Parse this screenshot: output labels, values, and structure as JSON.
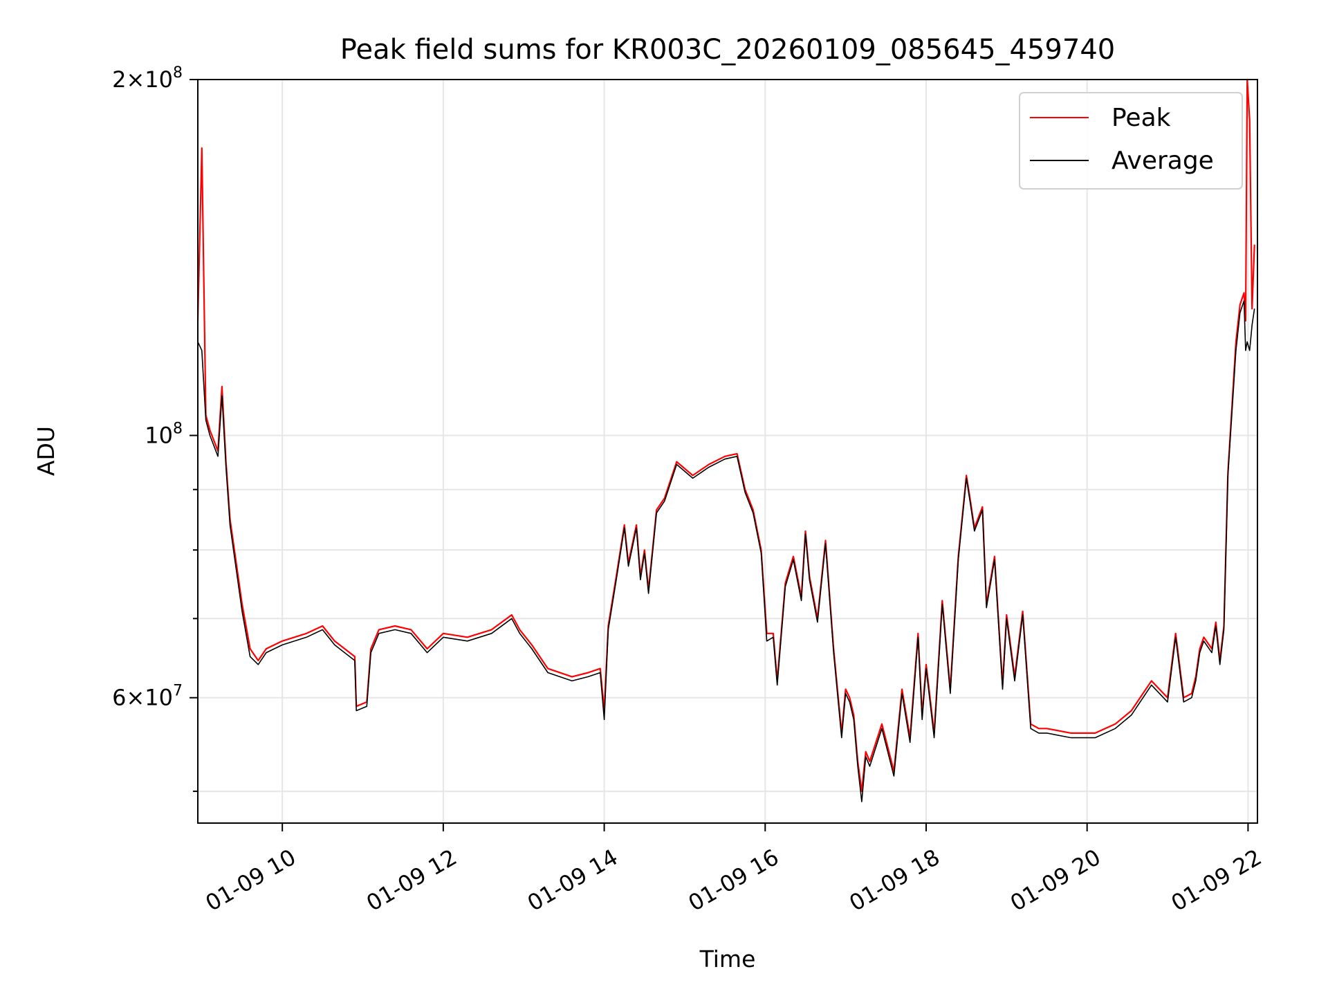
{
  "chart_data": {
    "type": "line",
    "title": "Peak field sums for KR003C_20260109_085645_459740",
    "xlabel": "Time",
    "ylabel": "ADU",
    "yscale": "log",
    "xlim": [
      "01-09 08:57",
      "01-09 22:07"
    ],
    "ylim": [
      47000000,
      200000000
    ],
    "grid": true,
    "legend_position": "top-right",
    "x_ticks": [
      "01-09 10",
      "01-09 12",
      "01-09 14",
      "01-09 16",
      "01-09 18",
      "01-09 20",
      "01-09 22"
    ],
    "x_tick_hours": [
      10,
      12,
      14,
      16,
      18,
      20,
      22
    ],
    "y_major_ticks": [
      {
        "value": 100000000,
        "mant": "",
        "exp": "8",
        "base": "10"
      },
      {
        "value": 60000000,
        "mant": "6",
        "exp": "7",
        "base": "10"
      },
      {
        "value": 200000000,
        "mant": "2",
        "exp": "8",
        "base": "10"
      }
    ],
    "y_minor_ticks": [
      50000000,
      70000000,
      80000000,
      90000000
    ],
    "colors": {
      "peak": "#ff0000",
      "average": "#000000"
    },
    "hours": [
      8.95,
      9.0,
      9.05,
      9.1,
      9.2,
      9.25,
      9.3,
      9.35,
      9.5,
      9.6,
      9.7,
      9.8,
      9.9,
      10.0,
      10.3,
      10.5,
      10.65,
      10.9,
      10.92,
      11.05,
      11.1,
      11.2,
      11.4,
      11.6,
      11.8,
      12.0,
      12.3,
      12.6,
      12.85,
      12.95,
      13.1,
      13.3,
      13.6,
      13.8,
      13.95,
      14.0,
      14.05,
      14.15,
      14.25,
      14.3,
      14.4,
      14.45,
      14.5,
      14.55,
      14.65,
      14.75,
      14.9,
      15.1,
      15.3,
      15.5,
      15.65,
      15.75,
      15.85,
      15.95,
      16.02,
      16.1,
      16.15,
      16.25,
      16.35,
      16.45,
      16.5,
      16.55,
      16.65,
      16.75,
      16.85,
      16.95,
      17.0,
      17.05,
      17.1,
      17.15,
      17.2,
      17.25,
      17.3,
      17.45,
      17.6,
      17.7,
      17.8,
      17.9,
      17.95,
      18.0,
      18.1,
      18.2,
      18.3,
      18.4,
      18.5,
      18.55,
      18.6,
      18.7,
      18.75,
      18.85,
      18.95,
      19.0,
      19.1,
      19.2,
      19.3,
      19.4,
      19.5,
      19.8,
      20.1,
      20.35,
      20.55,
      20.8,
      21.0,
      21.1,
      21.2,
      21.3,
      21.35,
      21.4,
      21.45,
      21.55,
      21.6,
      21.65,
      21.7,
      21.75,
      21.85,
      21.9,
      21.95,
      21.97,
      21.99,
      22.02,
      22.05,
      22.08
    ],
    "series": [
      {
        "name": "Peak",
        "values": [
          125000000,
          175000000,
          104000000,
          101000000,
          97000000,
          110000000,
          95000000,
          85000000,
          72000000,
          66000000,
          64500000,
          66000000,
          66500000,
          67000000,
          68000000,
          69000000,
          67000000,
          65000000,
          59000000,
          59500000,
          66000000,
          68500000,
          69000000,
          68500000,
          66000000,
          68000000,
          67500000,
          68500000,
          70500000,
          68500000,
          66500000,
          63500000,
          62500000,
          63000000,
          63500000,
          58500000,
          69000000,
          76000000,
          84000000,
          78000000,
          84000000,
          76000000,
          80000000,
          74000000,
          86500000,
          88500000,
          95000000,
          92500000,
          94500000,
          96000000,
          96500000,
          90000000,
          86500000,
          80000000,
          68000000,
          68000000,
          62000000,
          75000000,
          79000000,
          73000000,
          83000000,
          76000000,
          70000000,
          81500000,
          66000000,
          56000000,
          61000000,
          60000000,
          58000000,
          53000000,
          50000000,
          54000000,
          53000000,
          57000000,
          52000000,
          61000000,
          55500000,
          68000000,
          58000000,
          64000000,
          56000000,
          72500000,
          61000000,
          79000000,
          92500000,
          88000000,
          83500000,
          87000000,
          72000000,
          79000000,
          61500000,
          70500000,
          62500000,
          71000000,
          57000000,
          56500000,
          56500000,
          56000000,
          56000000,
          57000000,
          58500000,
          62000000,
          60000000,
          68000000,
          60000000,
          60500000,
          62500000,
          66000000,
          67500000,
          66000000,
          69500000,
          64500000,
          69000000,
          93000000,
          120000000,
          129000000,
          132000000,
          125000000,
          200000000,
          185000000,
          128000000,
          145000000
        ]
      },
      {
        "name": "Average",
        "values": [
          120000000,
          118000000,
          103000000,
          100000000,
          96000000,
          108000000,
          94000000,
          84000000,
          71000000,
          65000000,
          64000000,
          65500000,
          66000000,
          66500000,
          67500000,
          68500000,
          66500000,
          64500000,
          58500000,
          59000000,
          65500000,
          68000000,
          68500000,
          68000000,
          65500000,
          67500000,
          67000000,
          68000000,
          70000000,
          68000000,
          66000000,
          63000000,
          62000000,
          62500000,
          63000000,
          57500000,
          68500000,
          75500000,
          83500000,
          77500000,
          83500000,
          75500000,
          79500000,
          73500000,
          86000000,
          88000000,
          94500000,
          92000000,
          94000000,
          95500000,
          96000000,
          89500000,
          86000000,
          79500000,
          67000000,
          67500000,
          61500000,
          74500000,
          78500000,
          72500000,
          82500000,
          75500000,
          69500000,
          81000000,
          65500000,
          55500000,
          60500000,
          59500000,
          57500000,
          52500000,
          49000000,
          53500000,
          52500000,
          56500000,
          51500000,
          60500000,
          55000000,
          67500000,
          57500000,
          63500000,
          55500000,
          72000000,
          60500000,
          78500000,
          92000000,
          87500000,
          83000000,
          86500000,
          71500000,
          78500000,
          61000000,
          70000000,
          62000000,
          70500000,
          56500000,
          56000000,
          56000000,
          55500000,
          55500000,
          56500000,
          58000000,
          61500000,
          59500000,
          67500000,
          59500000,
          60000000,
          62000000,
          65500000,
          67000000,
          65500000,
          69000000,
          64000000,
          68500000,
          92500000,
          118000000,
          127000000,
          130000000,
          118000000,
          120000000,
          118000000,
          124000000,
          128000000
        ]
      }
    ]
  }
}
